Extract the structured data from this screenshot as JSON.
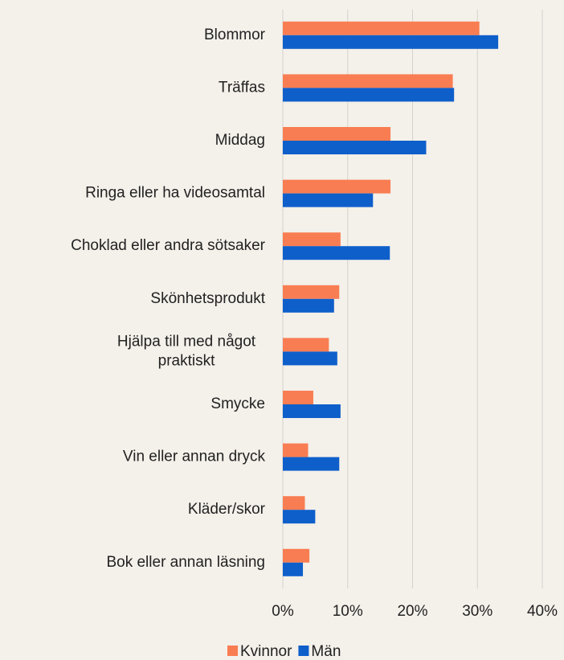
{
  "chart_data": {
    "type": "hbar",
    "categories": [
      "Blommor",
      "Träffas",
      "Middag",
      "Ringa eller ha videosamtal",
      "Choklad eller andra sötsaker",
      "Skönhetsprodukt",
      "Hjälpa till med något praktiskt",
      "Smycke",
      "Vin eller annan dryck",
      "Kläder/skor",
      "Bok eller annan läsning"
    ],
    "series": [
      {
        "name": "Kvinnor",
        "color": "#f97d52",
        "values": [
          30.3,
          26.2,
          16.6,
          16.6,
          8.9,
          8.7,
          7.1,
          4.7,
          3.9,
          3.4,
          4.1
        ]
      },
      {
        "name": "Män",
        "color": "#0e5fca",
        "values": [
          33.2,
          26.4,
          22.1,
          13.9,
          16.5,
          7.9,
          8.4,
          8.9,
          8.7,
          5.0,
          3.1
        ]
      }
    ],
    "xlim": [
      0,
      40
    ],
    "xticks": [
      {
        "value": 0,
        "label": "0%"
      },
      {
        "value": 10,
        "label": "10%"
      },
      {
        "value": 20,
        "label": "20%"
      },
      {
        "value": 30,
        "label": "30%"
      },
      {
        "value": 40,
        "label": "40%"
      }
    ],
    "grid": true,
    "legend": "bottom"
  }
}
